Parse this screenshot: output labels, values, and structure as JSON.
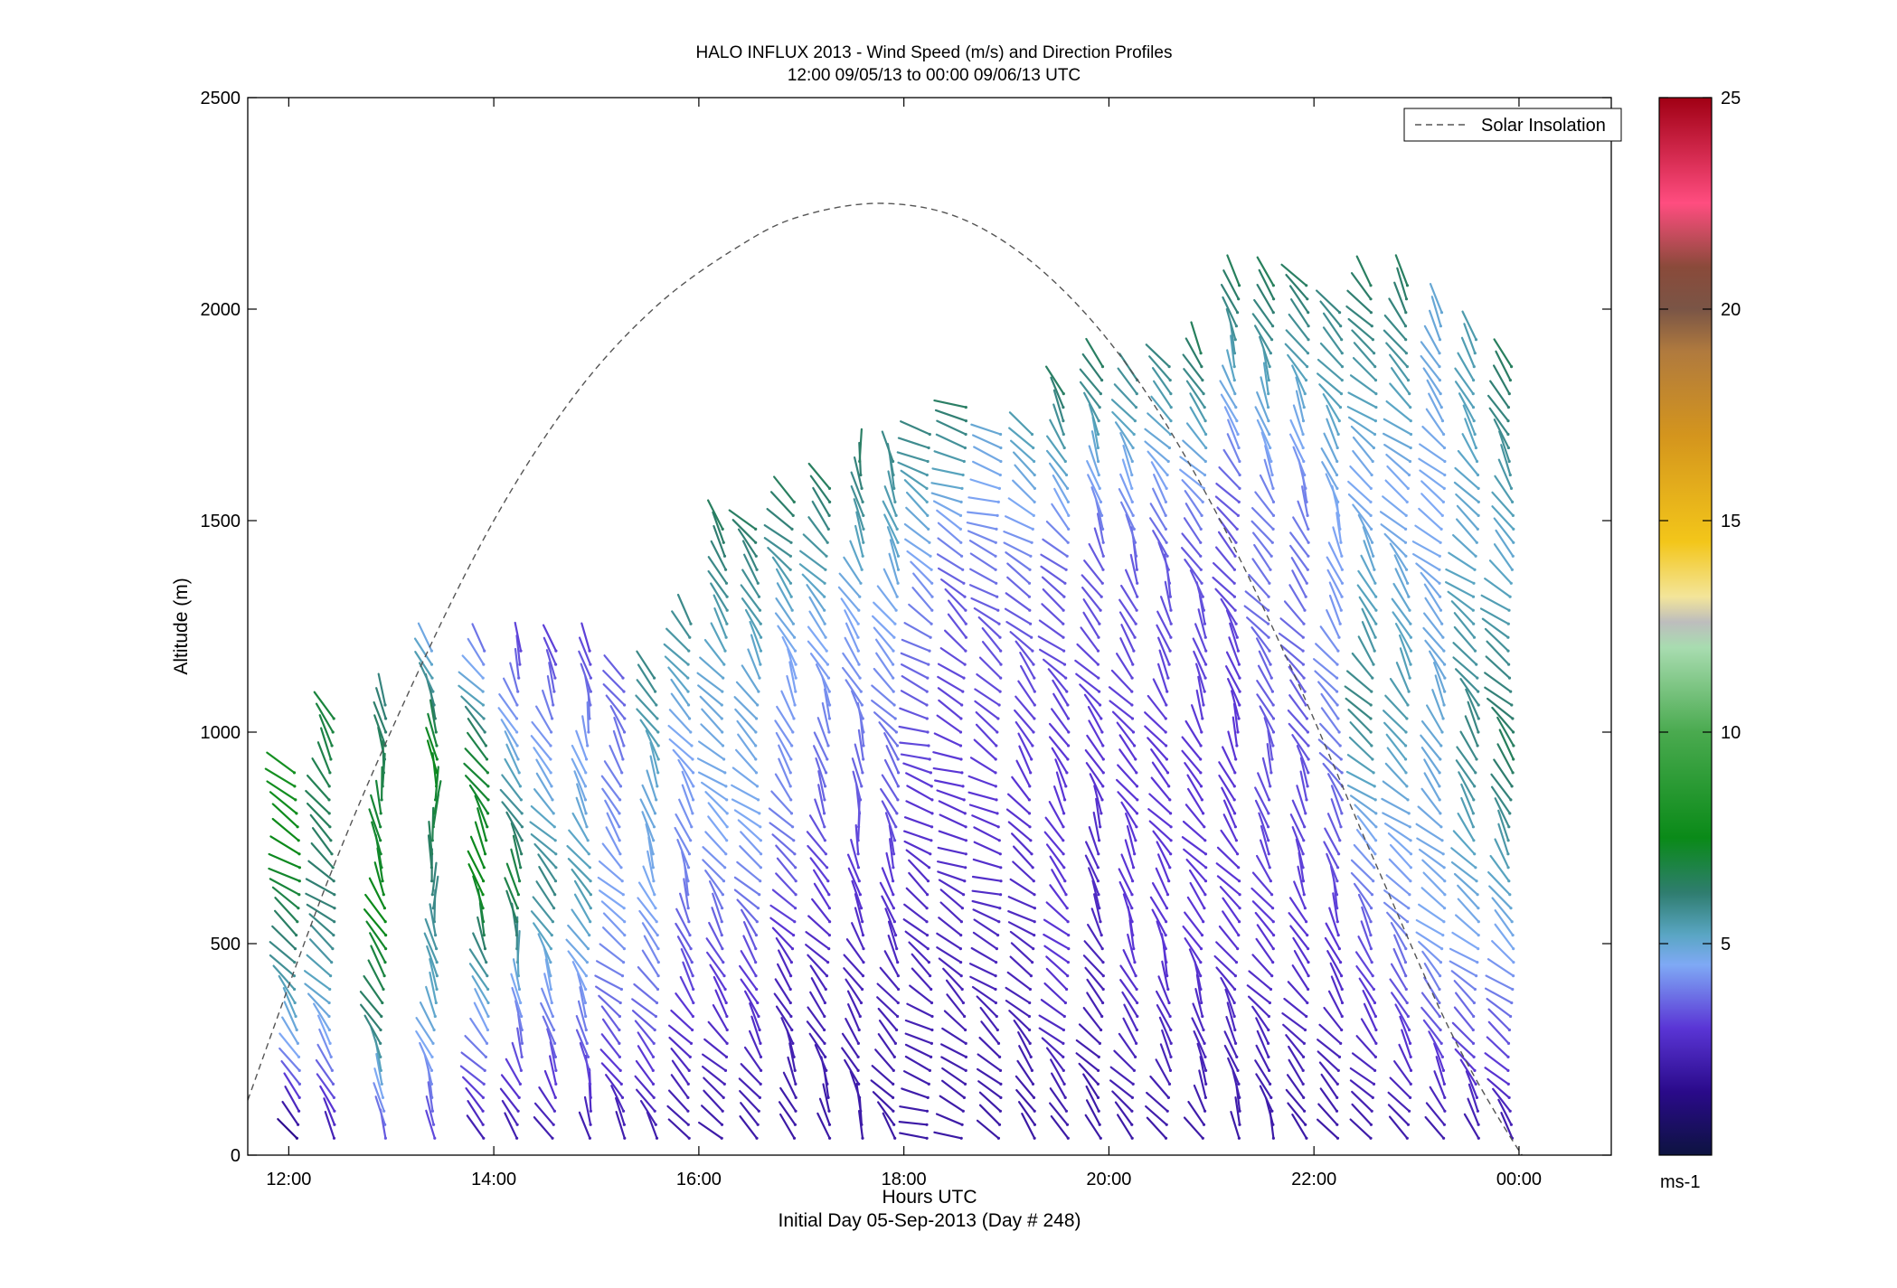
{
  "chart_data": {
    "type": "wind-barb-profile",
    "title": "HALO INFLUX 2013 - Wind Speed (m/s) and Direction Profiles",
    "subtitle": "12:00 09/05/13 to 00:00 09/06/13  UTC",
    "xlabel": "Hours UTC",
    "xlabel_sub": "Initial Day 05-Sep-2013 (Day # 248)",
    "ylabel": "Altitude (m)",
    "xlim": [
      11.6,
      24.9
    ],
    "ylim": [
      0,
      2500
    ],
    "x_ticks": [
      {
        "value": 12,
        "label": "12:00"
      },
      {
        "value": 14,
        "label": "14:00"
      },
      {
        "value": 16,
        "label": "16:00"
      },
      {
        "value": 18,
        "label": "18:00"
      },
      {
        "value": 20,
        "label": "20:00"
      },
      {
        "value": 22,
        "label": "22:00"
      },
      {
        "value": 24,
        "label": "00:00"
      }
    ],
    "y_ticks": [
      0,
      500,
      1000,
      1500,
      2000,
      2500
    ],
    "legend": {
      "entries": [
        "Solar Insolation"
      ],
      "placement": "top-right"
    },
    "grid": false,
    "colorbar": {
      "label": "ms-1",
      "range": [
        0,
        25
      ],
      "ticks": [
        5,
        10,
        15,
        20,
        25
      ],
      "stops": [
        {
          "v": 0,
          "c": "#0d1340"
        },
        {
          "v": 1.5,
          "c": "#2a0a8a"
        },
        {
          "v": 3,
          "c": "#5a35d5"
        },
        {
          "v": 4.5,
          "c": "#7fa9f5"
        },
        {
          "v": 5.2,
          "c": "#5aa6c4"
        },
        {
          "v": 6.2,
          "c": "#2f7d6f"
        },
        {
          "v": 7.5,
          "c": "#0a8a18"
        },
        {
          "v": 10,
          "c": "#4aaa4f"
        },
        {
          "v": 12,
          "c": "#a8dcb0"
        },
        {
          "v": 12.6,
          "c": "#bdbdbd"
        },
        {
          "v": 13.2,
          "c": "#f3e59a"
        },
        {
          "v": 14.5,
          "c": "#f3c61a"
        },
        {
          "v": 17,
          "c": "#d4951d"
        },
        {
          "v": 19,
          "c": "#b07a3e"
        },
        {
          "v": 20,
          "c": "#7a5546"
        },
        {
          "v": 21,
          "c": "#8a4a3a"
        },
        {
          "v": 22.5,
          "c": "#ff4d80"
        },
        {
          "v": 25,
          "c": "#a00014"
        }
      ]
    },
    "solar_insolation": {
      "x": [
        11.6,
        12.4,
        13.2,
        14.0,
        14.8,
        15.6,
        16.4,
        17.0,
        17.8,
        18.6,
        19.4,
        20.2,
        21.0,
        21.8,
        22.6,
        23.4,
        24.2,
        24.5
      ],
      "y": [
        130,
        660,
        1110,
        1500,
        1800,
        2010,
        2150,
        2220,
        2250,
        2210,
        2080,
        1860,
        1540,
        1140,
        690,
        260,
        -60,
        -100
      ]
    },
    "profiles": [
      {
        "t": 12.08,
        "top": 930,
        "dir": 315,
        "spd": [
          1,
          4.5,
          6,
          7.5,
          8
        ]
      },
      {
        "t": 12.42,
        "top": 1060,
        "dir": 320,
        "spd": [
          2,
          4.5,
          6,
          6.5,
          7
        ]
      },
      {
        "t": 12.92,
        "top": 1070,
        "dir": 340,
        "spd": [
          3,
          6,
          7.5,
          7,
          6
        ]
      },
      {
        "t": 13.42,
        "top": 1220,
        "dir": 350,
        "spd": [
          3,
          5,
          6,
          7.5,
          4.5
        ]
      },
      {
        "t": 13.92,
        "top": 1220,
        "dir": 330,
        "spd": [
          2,
          4.5,
          7.5,
          7,
          3.5
        ]
      },
      {
        "t": 14.25,
        "top": 1220,
        "dir": 340,
        "spd": [
          2,
          4,
          7,
          5,
          3
        ]
      },
      {
        "t": 14.58,
        "top": 1220,
        "dir": 330,
        "spd": [
          2,
          4,
          6,
          4.5,
          3
        ]
      },
      {
        "t": 14.92,
        "top": 1220,
        "dir": 335,
        "spd": [
          2,
          4,
          5.5,
          4.5,
          3
        ]
      },
      {
        "t": 15.25,
        "top": 1150,
        "dir": 320,
        "spd": [
          2,
          3.5,
          4.5,
          4,
          3.5
        ]
      },
      {
        "t": 15.58,
        "top": 1150,
        "dir": 330,
        "spd": [
          2,
          3.5,
          4.5,
          5,
          6
        ]
      },
      {
        "t": 15.92,
        "top": 1280,
        "dir": 330,
        "spd": [
          2,
          3,
          4,
          4.5,
          6
        ]
      },
      {
        "t": 16.25,
        "top": 1500,
        "dir": 320,
        "spd": [
          2,
          3,
          4.5,
          5,
          6.5
        ]
      },
      {
        "t": 16.58,
        "top": 1510,
        "dir": 320,
        "spd": [
          2,
          3,
          4.5,
          5,
          6.5
        ]
      },
      {
        "t": 16.92,
        "top": 1560,
        "dir": 325,
        "spd": [
          2,
          2.5,
          4,
          4.5,
          6.5
        ]
      },
      {
        "t": 17.25,
        "top": 1590,
        "dir": 330,
        "spd": [
          2,
          2.5,
          3.5,
          4.5,
          6.5
        ]
      },
      {
        "t": 17.58,
        "top": 1670,
        "dir": 340,
        "spd": [
          2,
          2.5,
          3.5,
          4.5,
          6.5
        ]
      },
      {
        "t": 17.92,
        "top": 1670,
        "dir": 330,
        "spd": [
          2,
          2.5,
          3.5,
          4.5,
          6
        ]
      },
      {
        "t": 18.25,
        "top": 1710,
        "dir": 300,
        "spd": [
          2,
          2.5,
          3,
          4,
          6
        ]
      },
      {
        "t": 18.58,
        "top": 1790,
        "dir": 300,
        "spd": [
          2,
          2.5,
          3,
          3.5,
          6.5
        ]
      },
      {
        "t": 18.92,
        "top": 1710,
        "dir": 300,
        "spd": [
          2,
          2.5,
          3,
          3.5,
          5
        ]
      },
      {
        "t": 19.25,
        "top": 1720,
        "dir": 315,
        "spd": [
          2,
          2.5,
          3,
          3.5,
          5.5
        ]
      },
      {
        "t": 19.58,
        "top": 1820,
        "dir": 320,
        "spd": [
          2,
          3,
          3,
          3.5,
          6.5
        ]
      },
      {
        "t": 19.92,
        "top": 1880,
        "dir": 330,
        "spd": [
          2,
          2.5,
          3,
          3.5,
          6.5
        ]
      },
      {
        "t": 20.25,
        "top": 1850,
        "dir": 330,
        "spd": [
          2,
          3,
          3,
          3.5,
          6
        ]
      },
      {
        "t": 20.58,
        "top": 1870,
        "dir": 330,
        "spd": [
          2,
          3,
          3,
          3.5,
          6
        ]
      },
      {
        "t": 20.92,
        "top": 1900,
        "dir": 330,
        "spd": [
          2,
          3,
          3,
          3.5,
          6.5
        ]
      },
      {
        "t": 21.25,
        "top": 2060,
        "dir": 330,
        "spd": [
          2,
          3,
          3,
          3.5,
          6.5
        ]
      },
      {
        "t": 21.58,
        "top": 2060,
        "dir": 330,
        "spd": [
          2,
          3,
          3.5,
          4,
          6.5
        ]
      },
      {
        "t": 21.92,
        "top": 2080,
        "dir": 330,
        "spd": [
          2,
          3,
          3.5,
          4,
          6.5
        ]
      },
      {
        "t": 22.25,
        "top": 2000,
        "dir": 330,
        "spd": [
          2,
          3,
          4,
          4.5,
          6
        ]
      },
      {
        "t": 22.58,
        "top": 2080,
        "dir": 320,
        "spd": [
          2,
          3.5,
          6,
          4.5,
          6.5
        ]
      },
      {
        "t": 22.92,
        "top": 2080,
        "dir": 320,
        "spd": [
          2,
          4,
          5.5,
          4.5,
          6.5
        ]
      },
      {
        "t": 23.25,
        "top": 2010,
        "dir": 320,
        "spd": [
          2,
          4.5,
          5,
          4.5,
          5
        ]
      },
      {
        "t": 23.58,
        "top": 1950,
        "dir": 320,
        "spd": [
          2,
          4.5,
          6,
          5,
          5.5
        ]
      },
      {
        "t": 23.92,
        "top": 1880,
        "dir": 320,
        "spd": [
          2,
          4.5,
          6.5,
          5,
          6.5
        ]
      }
    ]
  }
}
